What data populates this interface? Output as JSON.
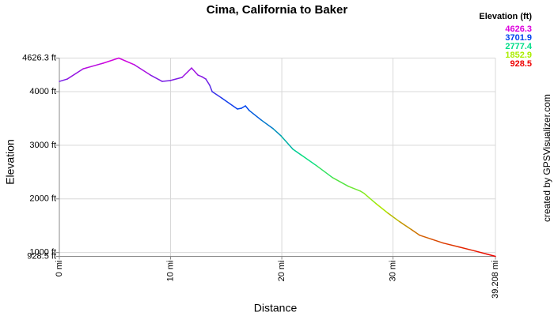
{
  "chart_data": {
    "type": "line",
    "title": "Cima, California to Baker",
    "x_label": "Distance",
    "y_label": "Elevation",
    "credit": "created by GPSVisualizer.com",
    "legend_title": "Elevation (ft)",
    "color_scale": [
      {
        "value": 4626.3,
        "color": "#dd00dd"
      },
      {
        "value": 3701.9,
        "color": "#0044ee"
      },
      {
        "value": 2777.4,
        "color": "#00dd88"
      },
      {
        "value": 1852.9,
        "color": "#aaee00"
      },
      {
        "value": 928.5,
        "color": "#ee0000"
      }
    ],
    "x": [
      0,
      0.71,
      2.14,
      3.91,
      5.34,
      6.76,
      8.19,
      9.25,
      9.96,
      11.03,
      11.89,
      12.46,
      12.81,
      13.17,
      13.52,
      13.74,
      14.59,
      16.01,
      16.37,
      16.73,
      17.08,
      18.15,
      19.22,
      19.93,
      21.0,
      21.71,
      23.13,
      24.56,
      25.98,
      27.05,
      27.4,
      28.47,
      29.54,
      30.6,
      31.67,
      32.38,
      33.45,
      34.52,
      35.94,
      37.37,
      38.43,
      39.208
    ],
    "values": [
      4191,
      4235,
      4426,
      4529,
      4626.3,
      4500,
      4309,
      4191,
      4206,
      4265,
      4441,
      4309,
      4279,
      4235,
      4118,
      4000,
      3882,
      3676,
      3691,
      3735,
      3647,
      3471,
      3309,
      3176,
      2926,
      2824,
      2618,
      2397,
      2235,
      2147,
      2103,
      1912,
      1735,
      1574,
      1426,
      1324,
      1250,
      1176,
      1103,
      1029,
      971,
      928.5
    ],
    "xlim": [
      0,
      39.208
    ],
    "ylim": [
      928.5,
      4626.3
    ],
    "xticks": [
      {
        "value": 0,
        "label": "0 mi"
      },
      {
        "value": 10,
        "label": "10 mi"
      },
      {
        "value": 20,
        "label": "20 mi"
      },
      {
        "value": 30,
        "label": "30 mi"
      },
      {
        "value": 39.208,
        "label": "39.208 mi"
      }
    ],
    "yticks": [
      {
        "value": 928.5,
        "label": "928.5 ft"
      },
      {
        "value": 1000,
        "label": "1000 ft"
      },
      {
        "value": 2000,
        "label": "2000 ft"
      },
      {
        "value": 3000,
        "label": "3000 ft"
      },
      {
        "value": 4000,
        "label": "4000 ft"
      },
      {
        "value": 4626.3,
        "label": "4626.3 ft"
      }
    ],
    "grid": true
  }
}
